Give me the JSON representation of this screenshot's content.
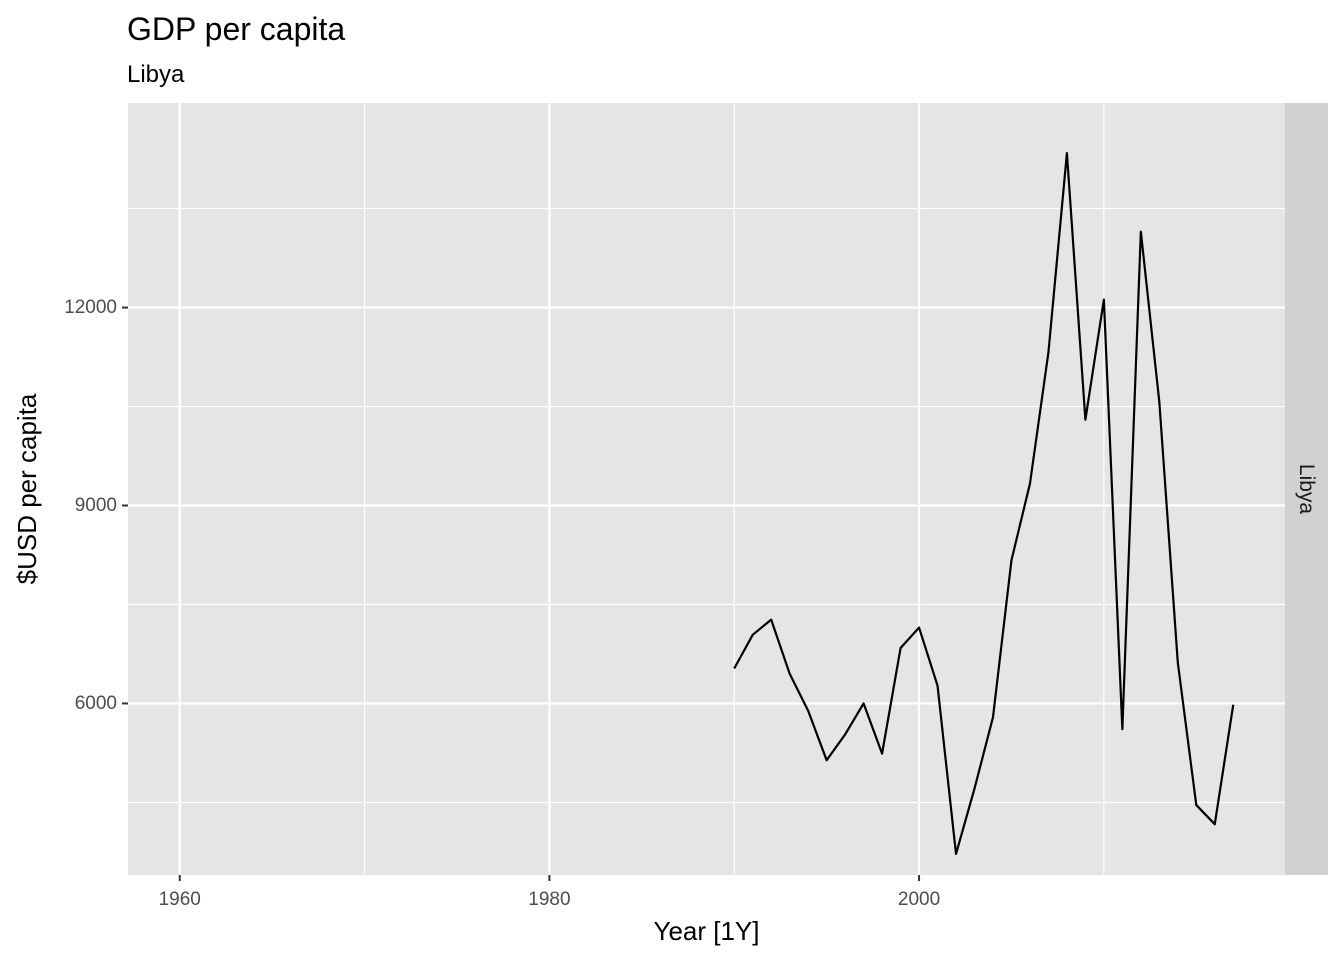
{
  "chart_data": {
    "type": "line",
    "title": "GDP per capita",
    "subtitle": "Libya",
    "xlabel": "Year [1Y]",
    "ylabel": "$USD per capita",
    "facet_label": "Libya",
    "xlim": [
      1957.2,
      2019.8
    ],
    "ylim": [
      3400,
      15100
    ],
    "x_ticks": [
      1960,
      1980,
      2000
    ],
    "x_minor_ticks": [
      1970,
      1990,
      2010
    ],
    "y_ticks": [
      6000,
      9000,
      12000
    ],
    "y_minor_ticks": [
      4500,
      7500,
      10500,
      13500
    ],
    "grid": true,
    "background": "#e5e5e5",
    "grid_color": "#ffffff",
    "strip_color": "#d1d1d1",
    "line_color": "#000000",
    "series": [
      {
        "x": [
          1990,
          1991,
          1992,
          1993,
          1994,
          1995,
          1996,
          1997,
          1998,
          1999,
          2000,
          2001,
          2002,
          2003,
          2004,
          2005,
          2006,
          2007,
          2008,
          2009,
          2010,
          2011,
          2012,
          2013,
          2014,
          2015,
          2016,
          2017
        ],
        "values": [
          6530,
          7040,
          7270,
          6450,
          5890,
          5140,
          5530,
          6000,
          5240,
          6840,
          7150,
          6270,
          3720,
          4710,
          5790,
          8170,
          9330,
          11320,
          14340,
          10300,
          12120,
          5610,
          13150,
          10570,
          6620,
          4460,
          4170,
          5980
        ]
      }
    ]
  }
}
